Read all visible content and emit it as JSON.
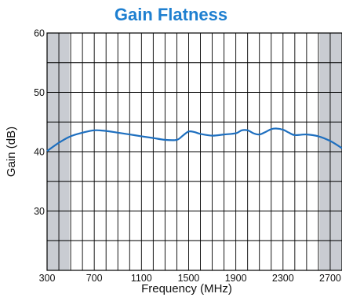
{
  "chart_data": {
    "type": "line",
    "title": "Gain Flatness",
    "xlabel": "Frequency (MHz)",
    "ylabel": "Gain (dB)",
    "xlim": [
      300,
      2800
    ],
    "ylim": [
      20,
      60
    ],
    "xticks": [
      300,
      700,
      1100,
      1500,
      1900,
      2300,
      2700
    ],
    "yticks": [
      30,
      40,
      50,
      60
    ],
    "grid": true,
    "shaded_regions": [
      [
        300,
        490
      ],
      [
        2610,
        2800
      ]
    ],
    "colors": {
      "line": "#1e6fbf",
      "title": "#1e7fd0",
      "shade": "#c9ccd2"
    },
    "series": [
      {
        "x": [
          300,
          400,
          500,
          600,
          700,
          800,
          900,
          1000,
          1100,
          1200,
          1300,
          1400,
          1450,
          1500,
          1550,
          1600,
          1700,
          1800,
          1900,
          1950,
          2000,
          2050,
          2100,
          2150,
          2200,
          2250,
          2300,
          2350,
          2400,
          2500,
          2600,
          2700,
          2800
        ],
        "y": [
          40.1,
          41.5,
          42.6,
          43.2,
          43.6,
          43.5,
          43.2,
          42.9,
          42.6,
          42.3,
          42.0,
          42.0,
          42.7,
          43.4,
          43.3,
          43.0,
          42.7,
          42.9,
          43.1,
          43.6,
          43.6,
          43.1,
          42.9,
          43.3,
          43.8,
          43.9,
          43.7,
          43.2,
          42.8,
          42.9,
          42.6,
          41.8,
          40.6
        ]
      }
    ]
  }
}
